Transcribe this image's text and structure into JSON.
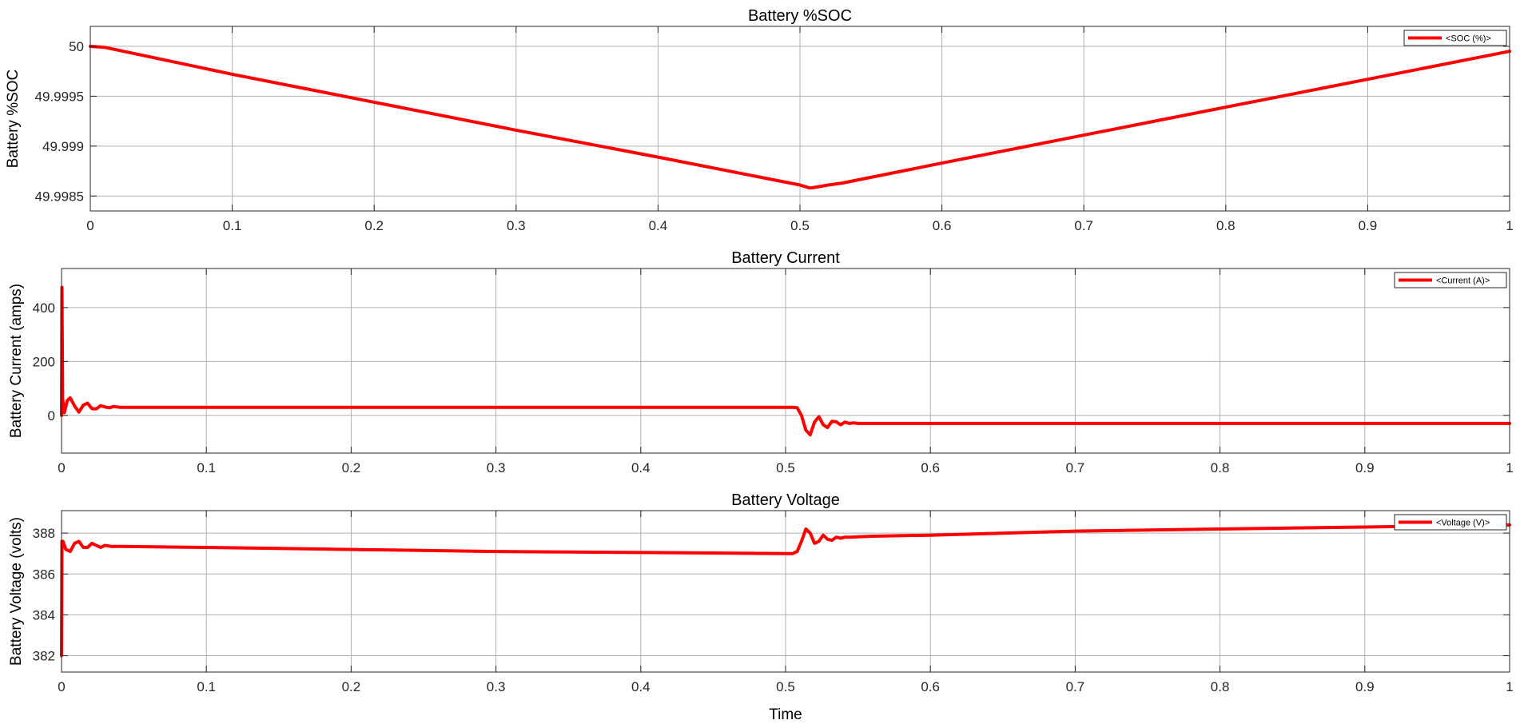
{
  "figure": {
    "xlabel": "Time",
    "colors": {
      "line": "#ff0000",
      "grid": "#b0b0b0",
      "axes": "#262626"
    }
  },
  "chart_data": [
    {
      "type": "line",
      "title": "Battery %SOC",
      "xlabel": "",
      "ylabel": "Battery %SOC",
      "xlim": [
        0,
        1
      ],
      "ylim": [
        49.99835,
        50.0002
      ],
      "xticks": [
        0,
        0.1,
        0.2,
        0.3,
        0.4,
        0.5,
        0.6,
        0.7,
        0.8,
        0.9,
        1
      ],
      "xtick_labels": [
        "0",
        "0.1",
        "0.2",
        "0.3",
        "0.4",
        "0.5",
        "0.6",
        "0.7",
        "0.8",
        "0.9",
        "1"
      ],
      "yticks": [
        49.9985,
        49.999,
        49.9995,
        50
      ],
      "ytick_labels": [
        "49.9985",
        "49.999",
        "49.9995",
        "50"
      ],
      "grid": true,
      "legend": "top-right",
      "series": [
        {
          "name": "<SOC (%)>",
          "color": "#ff0000",
          "x": [
            0,
            0.01,
            0.1,
            0.2,
            0.3,
            0.4,
            0.5,
            0.507,
            0.512,
            0.52,
            0.53,
            0.6,
            0.7,
            0.8,
            0.9,
            1.0
          ],
          "y": [
            50.0,
            49.99999,
            49.99972,
            49.99944,
            49.99916,
            49.99889,
            49.99861,
            49.99858,
            49.99859,
            49.99861,
            49.99863,
            49.99883,
            49.99911,
            49.99939,
            49.99967,
            49.99995
          ]
        }
      ]
    },
    {
      "type": "line",
      "title": "Battery Current",
      "xlabel": "",
      "ylabel": "Battery Current (amps)",
      "xlim": [
        0,
        1
      ],
      "ylim": [
        -140,
        545
      ],
      "xticks": [
        0,
        0.1,
        0.2,
        0.3,
        0.4,
        0.5,
        0.6,
        0.7,
        0.8,
        0.9,
        1
      ],
      "xtick_labels": [
        "0",
        "0.1",
        "0.2",
        "0.3",
        "0.4",
        "0.5",
        "0.6",
        "0.7",
        "0.8",
        "0.9",
        "1"
      ],
      "yticks": [
        0,
        200,
        400
      ],
      "ytick_labels": [
        "0",
        "200",
        "400"
      ],
      "grid": true,
      "legend": "top-right",
      "series": [
        {
          "name": "<Current (A)>",
          "color": "#ff0000",
          "x": [
            0,
            0.0003,
            0.0008,
            0.002,
            0.004,
            0.006,
            0.009,
            0.012,
            0.015,
            0.018,
            0.021,
            0.024,
            0.027,
            0.03,
            0.033,
            0.036,
            0.04,
            0.1,
            0.2,
            0.3,
            0.4,
            0.5,
            0.505,
            0.508,
            0.511,
            0.514,
            0.517,
            0.52,
            0.523,
            0.526,
            0.529,
            0.532,
            0.535,
            0.538,
            0.541,
            0.544,
            0.547,
            0.55,
            0.56,
            0.6,
            0.7,
            0.8,
            0.9,
            1.0
          ],
          "y": [
            0,
            475,
            60,
            10,
            55,
            65,
            35,
            12,
            38,
            45,
            25,
            24,
            36,
            31,
            28,
            33,
            30,
            30,
            30,
            30,
            30,
            30,
            30,
            28,
            0,
            -55,
            -72,
            -25,
            -5,
            -35,
            -45,
            -22,
            -24,
            -35,
            -25,
            -30,
            -28,
            -30,
            -30,
            -30,
            -30,
            -30,
            -30,
            -30
          ]
        }
      ]
    },
    {
      "type": "line",
      "title": "Battery Voltage",
      "xlabel": "Time",
      "ylabel": "Battery Voltage (volts)",
      "xlim": [
        0,
        1
      ],
      "ylim": [
        381.2,
        389.1
      ],
      "xticks": [
        0,
        0.1,
        0.2,
        0.3,
        0.4,
        0.5,
        0.6,
        0.7,
        0.8,
        0.9,
        1
      ],
      "xtick_labels": [
        "0",
        "0.1",
        "0.2",
        "0.3",
        "0.4",
        "0.5",
        "0.6",
        "0.7",
        "0.8",
        "0.9",
        "1"
      ],
      "yticks": [
        382,
        384,
        386,
        388
      ],
      "ytick_labels": [
        "382",
        "384",
        "386",
        "388"
      ],
      "grid": true,
      "legend": "top-right",
      "series": [
        {
          "name": "<Voltage (V)>",
          "color": "#ff0000",
          "x": [
            0,
            0.0003,
            0.001,
            0.003,
            0.006,
            0.009,
            0.012,
            0.015,
            0.018,
            0.021,
            0.024,
            0.027,
            0.03,
            0.034,
            0.04,
            0.1,
            0.2,
            0.3,
            0.4,
            0.5,
            0.505,
            0.508,
            0.511,
            0.514,
            0.517,
            0.52,
            0.523,
            0.526,
            0.529,
            0.532,
            0.535,
            0.538,
            0.541,
            0.545,
            0.55,
            0.56,
            0.6,
            0.7,
            0.8,
            0.9,
            1.0
          ],
          "y": [
            382.0,
            387.6,
            387.6,
            387.2,
            387.1,
            387.5,
            387.6,
            387.3,
            387.3,
            387.5,
            387.4,
            387.3,
            387.4,
            387.35,
            387.35,
            387.3,
            387.2,
            387.1,
            387.05,
            387.0,
            387.0,
            387.1,
            387.6,
            388.2,
            388.0,
            387.5,
            387.6,
            387.9,
            387.7,
            387.65,
            387.8,
            387.75,
            387.8,
            387.8,
            387.82,
            387.85,
            387.9,
            388.1,
            388.2,
            388.3,
            388.4
          ]
        }
      ]
    }
  ]
}
